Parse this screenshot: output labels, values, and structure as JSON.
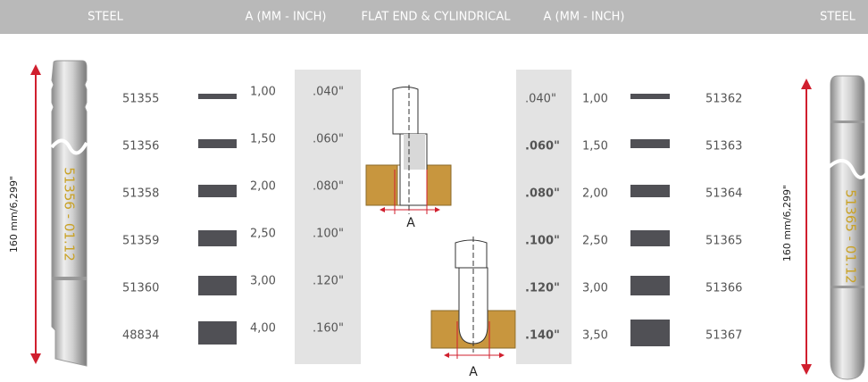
{
  "header": {
    "left_title": "STEEL",
    "left_dim": "A (MM - INCH)",
    "center_title": "FLAT END & CYLINDRICAL",
    "right_dim": "A (MM - INCH)",
    "right_title": "STEEL"
  },
  "left_table": {
    "rows": [
      [
        "51355",
        "1,00",
        ".040\""
      ],
      [
        "51356",
        "1,50",
        ".060\""
      ],
      [
        "51358",
        "2,00",
        ".080\""
      ],
      [
        "51359",
        "2,50",
        ".100\""
      ],
      [
        "51360",
        "3,00",
        ".120\""
      ],
      [
        "48834",
        "4,00",
        ".160\""
      ]
    ]
  },
  "right_table": {
    "rows": [
      [
        ".040\"",
        "1,00",
        "51362"
      ],
      [
        ".060\"",
        "1,50",
        "51363"
      ],
      [
        ".080\"",
        "2,00",
        "51364"
      ],
      [
        ".100\"",
        "2,50",
        "51365"
      ],
      [
        ".120\"",
        "3,00",
        "51366"
      ],
      [
        ".140\"",
        "3,50",
        "51367"
      ]
    ]
  },
  "left_tool": {
    "code": "51356 - 01.12",
    "length": "160 mm/6,299\""
  },
  "right_tool": {
    "code": "51365 - 01.12",
    "length": "160 mm/6,299\""
  },
  "diagrams": {
    "flat_label": "A",
    "cylindrical_label": "A"
  }
}
